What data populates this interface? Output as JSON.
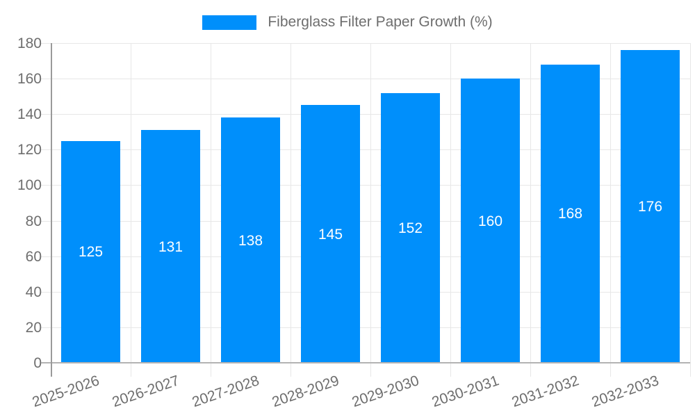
{
  "chart_data": {
    "type": "bar",
    "title": "",
    "legend": {
      "label": "Fiberglass Filter Paper Growth (%)",
      "position": "top"
    },
    "categories": [
      "2025-2026",
      "2026-2027",
      "2027-2028",
      "2028-2029",
      "2029-2030",
      "2030-2031",
      "2031-2032",
      "2032-2033"
    ],
    "values": [
      125,
      131,
      138,
      145,
      152,
      160,
      168,
      176
    ],
    "xlabel": "",
    "ylabel": "",
    "ylim": [
      0,
      180
    ],
    "y_ticks": [
      0,
      20,
      40,
      60,
      80,
      100,
      120,
      140,
      160,
      180
    ],
    "grid": true,
    "colors": {
      "bar": "#008FFB",
      "data_label": "#ffffff",
      "axis_text": "#6e6e6e",
      "grid_line": "#e7e7e7",
      "axis_line": "#9a9a9a",
      "baseline": "#b3b3b3"
    }
  }
}
